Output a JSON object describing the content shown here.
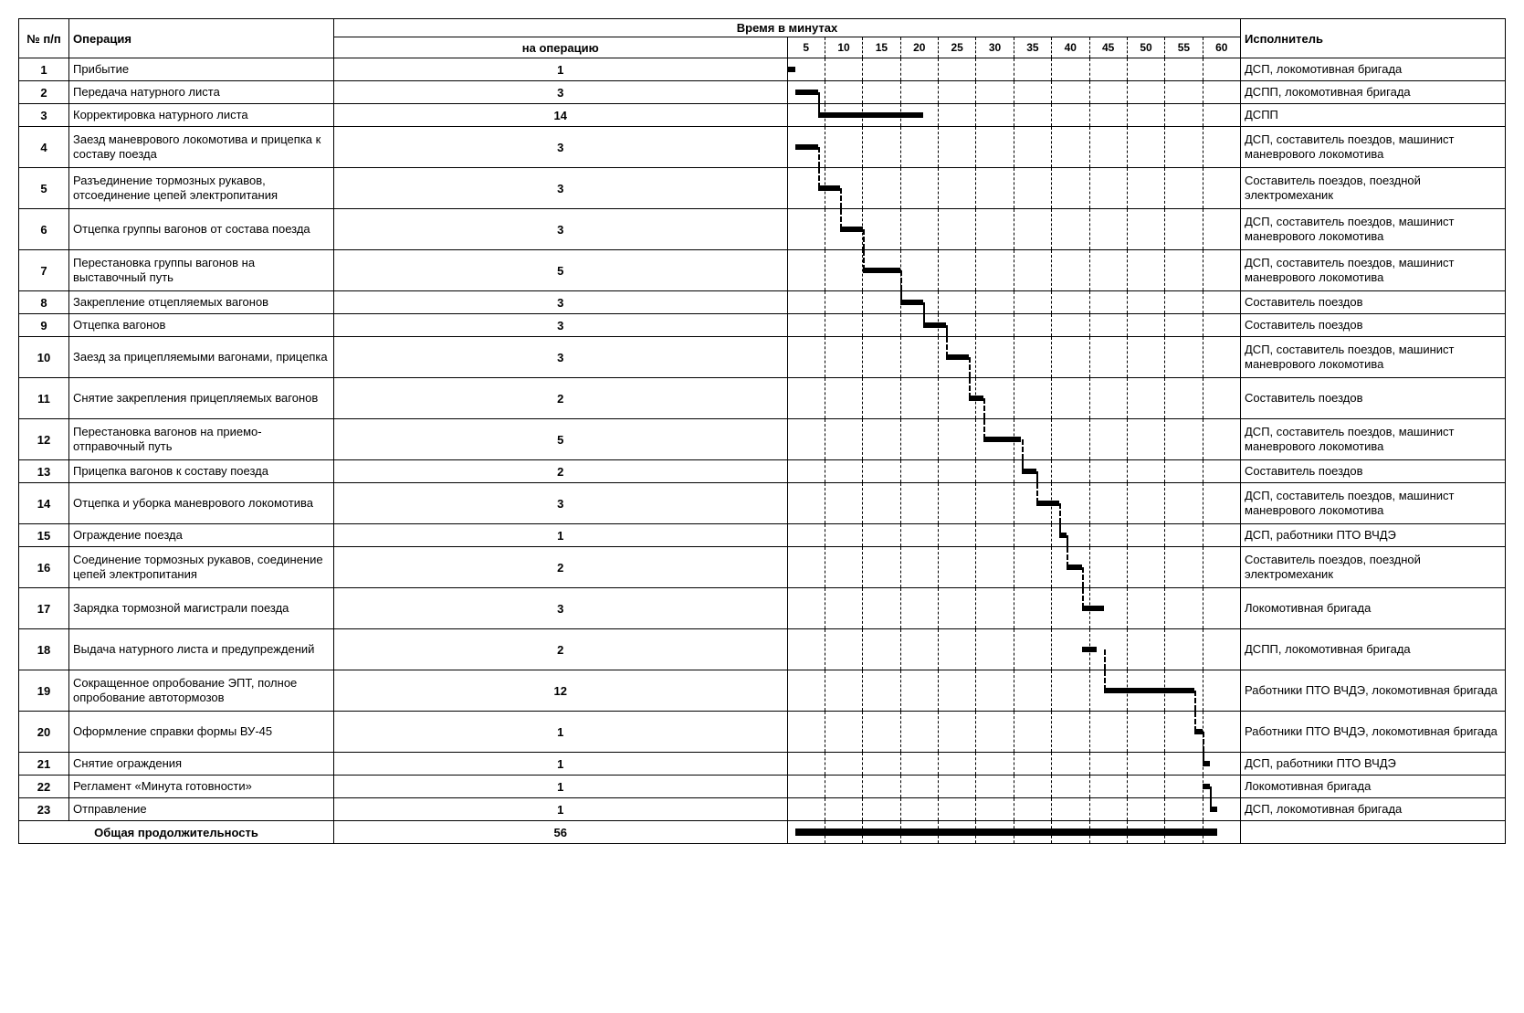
{
  "headers": {
    "num": "№ п/п",
    "operation": "Операция",
    "time_group": "Время в минутах",
    "per_op": "на операцию",
    "executor": "Исполнитель"
  },
  "chart": {
    "total_minutes": 60,
    "ticks": [
      5,
      10,
      15,
      20,
      25,
      30,
      35,
      40,
      45,
      50,
      55,
      60
    ],
    "grid_cols": 12,
    "bar_color": "#000000",
    "dash_color": "#000000",
    "bg_color": "#ffffff"
  },
  "rows": [
    {
      "n": "1",
      "op": "Прибытие",
      "dur": 1,
      "start": 0,
      "exec": "ДСП, локомотивная бригада",
      "lines": 1
    },
    {
      "n": "2",
      "op": "Передача натурного листа",
      "dur": 3,
      "start": 1,
      "exec": "ДСПП, локомотивная бригада",
      "lines": 1
    },
    {
      "n": "3",
      "op": "Корректировка натурного листа",
      "dur": 14,
      "start": 4,
      "exec": "ДСПП",
      "lines": 1,
      "stair_from": 1,
      "stair_to": 4
    },
    {
      "n": "4",
      "op": "Заезд маневрового локомотива и прицепка к составу поезда",
      "dur": 3,
      "start": 1,
      "exec": "ДСП, составитель поездов, машинист маневрового локомотива",
      "lines": 2
    },
    {
      "n": "5",
      "op": "Разъединение тормозных рукавов, отсоединение цепей электропитания",
      "dur": 3,
      "start": 4,
      "exec": "Составитель поездов, поездной электромеханик",
      "lines": 2,
      "stair_from": 4,
      "stair_to": 4
    },
    {
      "n": "6",
      "op": "Отцепка группы вагонов от состава поезда",
      "dur": 3,
      "start": 7,
      "exec": "ДСП, составитель поездов, машинист маневрового локомотива",
      "lines": 2,
      "stair_from": 7,
      "stair_to": 7
    },
    {
      "n": "7",
      "op": "Перестановка группы вагонов на выставочный путь",
      "dur": 5,
      "start": 10,
      "exec": "ДСП, составитель поездов, машинист маневрового локомотива",
      "lines": 2,
      "stair_from": 10,
      "stair_to": 10
    },
    {
      "n": "8",
      "op": "Закрепление отцепляемых вагонов",
      "dur": 3,
      "start": 15,
      "exec": "Составитель поездов",
      "lines": 1,
      "stair_from": 15,
      "stair_to": 15
    },
    {
      "n": "9",
      "op": "Отцепка вагонов",
      "dur": 3,
      "start": 18,
      "exec": "Составитель поездов",
      "lines": 1,
      "stair_from": 18,
      "stair_to": 18
    },
    {
      "n": "10",
      "op": "Заезд за прицепляемыми вагонами, прицепка",
      "dur": 3,
      "start": 21,
      "exec": "ДСП, составитель поездов, машинист маневрового локомотива",
      "lines": 2,
      "stair_from": 21,
      "stair_to": 21
    },
    {
      "n": "11",
      "op": "Снятие закрепления прицепляемых вагонов",
      "dur": 2,
      "start": 24,
      "exec": "Составитель поездов",
      "lines": 2,
      "stair_from": 24,
      "stair_to": 24
    },
    {
      "n": "12",
      "op": "Перестановка вагонов на приемо-отправочный путь",
      "dur": 5,
      "start": 26,
      "exec": "ДСП, составитель поездов, машинист маневрового локомотива",
      "lines": 2,
      "stair_from": 26,
      "stair_to": 26
    },
    {
      "n": "13",
      "op": "Прицепка вагонов к составу поезда",
      "dur": 2,
      "start": 31,
      "exec": "Составитель поездов",
      "lines": 1,
      "stair_from": 31,
      "stair_to": 31
    },
    {
      "n": "14",
      "op": "Отцепка и уборка маневрового локомотива",
      "dur": 3,
      "start": 33,
      "exec": "ДСП, составитель поездов, машинист маневрового локомотива",
      "lines": 2,
      "stair_from": 33,
      "stair_to": 33
    },
    {
      "n": "15",
      "op": "Ограждение поезда",
      "dur": 1,
      "start": 36,
      "exec": "ДСП, работники ПТО ВЧДЭ",
      "lines": 1,
      "stair_from": 36,
      "stair_to": 36
    },
    {
      "n": "16",
      "op": "Соединение тормозных рукавов, соединение цепей электропитания",
      "dur": 2,
      "start": 37,
      "exec": "Составитель поездов, поездной электромеханик",
      "lines": 2,
      "stair_from": 37,
      "stair_to": 37
    },
    {
      "n": "17",
      "op": "Зарядка тормозной магистрали поезда",
      "dur": 3,
      "start": 39,
      "exec": "Локомотивная бригада",
      "lines": 2,
      "stair_from": 39,
      "stair_to": 39
    },
    {
      "n": "18",
      "op": "Выдача натурного листа и предупреждений",
      "dur": 2,
      "start": 39,
      "exec": "ДСПП, локомотивная бригада",
      "lines": 2
    },
    {
      "n": "19",
      "op": "Сокращенное опробование ЭПТ, полное опробование автотормозов",
      "dur": 12,
      "start": 42,
      "exec": "Работники ПТО ВЧДЭ, локомотивная бригада",
      "lines": 2,
      "stair_from": 42,
      "stair_to": 42
    },
    {
      "n": "20",
      "op": "Оформление справки формы ВУ-45",
      "dur": 1,
      "start": 54,
      "exec": "Работники ПТО ВЧДЭ, локомотивная бригада",
      "lines": 2,
      "stair_from": 54,
      "stair_to": 54
    },
    {
      "n": "21",
      "op": "Снятие ограждения",
      "dur": 1,
      "start": 55,
      "exec": "ДСП, работники ПТО ВЧДЭ",
      "lines": 1,
      "stair_from": 55,
      "stair_to": 55
    },
    {
      "n": "22",
      "op": "Регламент «Минута готовности»",
      "dur": 1,
      "start": 55,
      "exec": "Локомотивная бригада",
      "lines": 1
    },
    {
      "n": "23",
      "op": "Отправление",
      "dur": 1,
      "start": 56,
      "exec": "ДСП, локомотивная бригада",
      "lines": 1,
      "stair_from": 56,
      "stair_to": 56
    }
  ],
  "total": {
    "label": "Общая продолжительность",
    "value": 56,
    "bar_start": 1,
    "bar_end": 57
  }
}
